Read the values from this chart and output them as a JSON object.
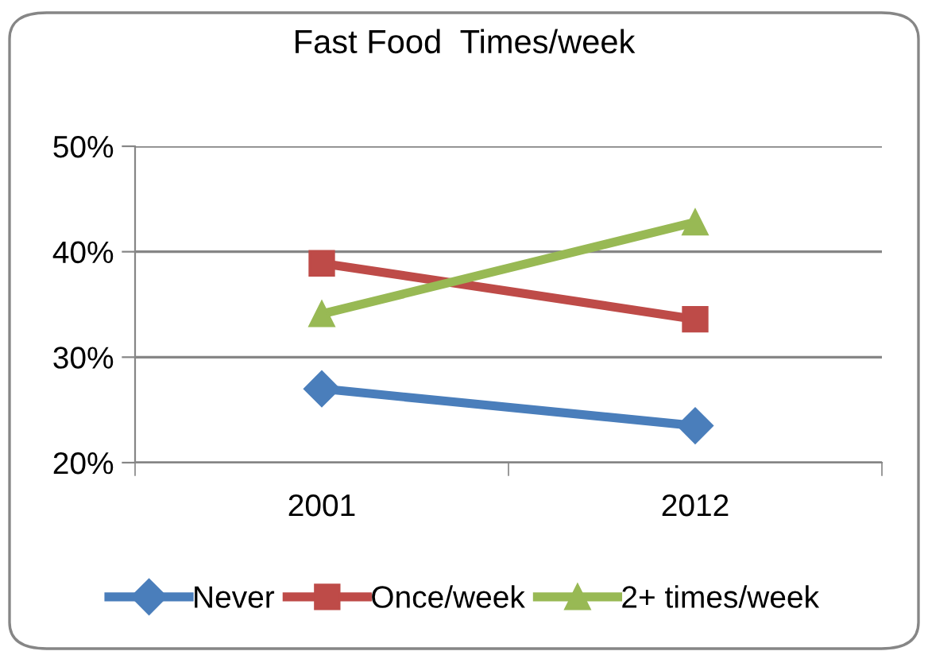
{
  "chart_data": {
    "type": "line",
    "title": "Fast Food  Times/week",
    "categories": [
      "2001",
      "2012"
    ],
    "series": [
      {
        "name": "Never",
        "color": "#4a7ebb",
        "marker": "diamond",
        "values": [
          27.0,
          23.5
        ]
      },
      {
        "name": "Once/week",
        "color": "#be4b48",
        "marker": "square",
        "values": [
          38.9,
          33.6
        ]
      },
      {
        "name": "2+ times/week",
        "color": "#98b954",
        "marker": "triangle",
        "values": [
          34.1,
          42.8
        ]
      }
    ],
    "ylim": [
      20,
      50
    ],
    "yticks": [
      {
        "value": 20,
        "label": "20%"
      },
      {
        "value": 30,
        "label": "30%"
      },
      {
        "value": 40,
        "label": "40%"
      },
      {
        "value": 50,
        "label": "50%"
      }
    ],
    "grid": "y",
    "legend": "bottom"
  }
}
